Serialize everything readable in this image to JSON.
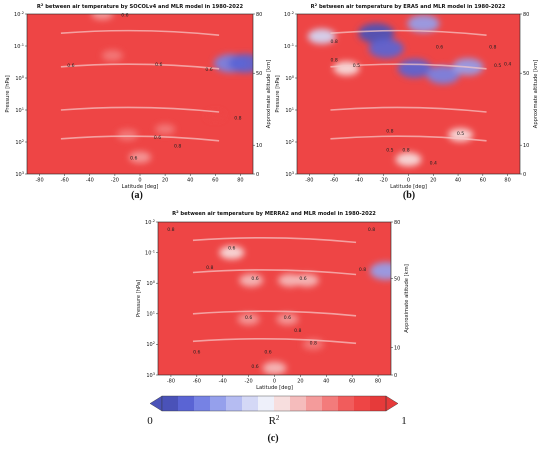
{
  "chart_data": [
    {
      "type": "heatmap",
      "panel_label": "(a)",
      "title_prefix": "R",
      "title_sup": "2",
      "title_rest": " between air temperature by SOCOLv4 and MLR model in 1980-2022",
      "xlabel": "Latitude [deg]",
      "ylabel": "Pressure [hPa]",
      "ylabel_right": "Approximate altitude [km]",
      "xticks": [
        "-80",
        "-60",
        "-40",
        "-20",
        "0",
        "20",
        "40",
        "60",
        "80"
      ],
      "xlim": [
        -90,
        90
      ],
      "yticks_left": [
        {
          "base": "10",
          "exp": "-2"
        },
        {
          "base": "10",
          "exp": "-1"
        },
        {
          "base": "10",
          "exp": "0"
        },
        {
          "base": "10",
          "exp": "1"
        },
        {
          "base": "10",
          "exp": "2"
        },
        {
          "base": "10",
          "exp": "3"
        }
      ],
      "yticks_right": [
        "80",
        "50",
        "10",
        "0"
      ],
      "yscale": "log",
      "contour_labels": [
        {
          "text": "0.6",
          "lat": -12,
          "p": 0.012
        },
        {
          "text": "0.6",
          "lat": -55,
          "p": 0.45
        },
        {
          "text": "0.6",
          "lat": 15,
          "p": 0.42
        },
        {
          "text": "0.6",
          "lat": 55,
          "p": 0.6
        },
        {
          "text": "0.8",
          "lat": 78,
          "p": 20
        },
        {
          "text": "0.6",
          "lat": 14,
          "p": 80
        },
        {
          "text": "0.6",
          "lat": -5,
          "p": 350
        },
        {
          "text": "0.8",
          "lat": 30,
          "p": 150
        }
      ],
      "features": [
        {
          "lat": 72,
          "p": 0.35,
          "value": 0.15
        },
        {
          "lat": 84,
          "p": 0.35,
          "value": 0.1
        },
        {
          "lat": -30,
          "p": 0.01,
          "value": 0.7
        },
        {
          "lat": -22,
          "p": 0.2,
          "value": 0.75
        },
        {
          "lat": 0,
          "p": 300,
          "value": 0.7
        },
        {
          "lat": -10,
          "p": 60,
          "value": 0.75
        },
        {
          "lat": 20,
          "p": 40,
          "value": 0.8
        },
        {
          "lat": 60,
          "p": 15,
          "value": 0.9
        }
      ]
    },
    {
      "type": "heatmap",
      "panel_label": "(b)",
      "title_prefix": "R",
      "title_sup": "2",
      "title_rest": " between air temperature by ERA5 and MLR model in 1980-2022",
      "xlabel": "Latitude [deg]",
      "ylabel": "Pressure [hPa]",
      "ylabel_right": "Approximate altitude [km]",
      "xticks": [
        "-80",
        "-60",
        "-40",
        "-20",
        "0",
        "20",
        "40",
        "60",
        "80"
      ],
      "xlim": [
        -90,
        90
      ],
      "yticks_left": [
        {
          "base": "10",
          "exp": "-2"
        },
        {
          "base": "10",
          "exp": "-1"
        },
        {
          "base": "10",
          "exp": "0"
        },
        {
          "base": "10",
          "exp": "1"
        },
        {
          "base": "10",
          "exp": "2"
        },
        {
          "base": "10",
          "exp": "3"
        }
      ],
      "yticks_right": [
        "80",
        "50",
        "10",
        "0"
      ],
      "yscale": "log",
      "contour_labels": [
        {
          "text": "0.8",
          "lat": -60,
          "p": 0.08
        },
        {
          "text": "0.8",
          "lat": -60,
          "p": 0.3
        },
        {
          "text": "0.5",
          "lat": -42,
          "p": 0.45
        },
        {
          "text": "0.6",
          "lat": 25,
          "p": 0.12
        },
        {
          "text": "0.8",
          "lat": 68,
          "p": 0.12
        },
        {
          "text": "0.5",
          "lat": 72,
          "p": 0.45
        },
        {
          "text": "0.4",
          "lat": 80,
          "p": 0.4
        },
        {
          "text": "0.8",
          "lat": -15,
          "p": 50
        },
        {
          "text": "0.5",
          "lat": 42,
          "p": 60
        },
        {
          "text": "0.8",
          "lat": -2,
          "p": 200
        },
        {
          "text": "0.5",
          "lat": -15,
          "p": 200
        },
        {
          "text": "0.4",
          "lat": 20,
          "p": 500
        }
      ],
      "features": [
        {
          "lat": -26,
          "p": 0.04,
          "value": 0.0
        },
        {
          "lat": -18,
          "p": 0.12,
          "value": 0.05
        },
        {
          "lat": 5,
          "p": 0.5,
          "value": 0.1
        },
        {
          "lat": 28,
          "p": 0.8,
          "value": 0.15
        },
        {
          "lat": -50,
          "p": 0.5,
          "value": 0.5
        },
        {
          "lat": 12,
          "p": 0.02,
          "value": 0.2
        },
        {
          "lat": 48,
          "p": 0.45,
          "value": 0.25
        },
        {
          "lat": 0,
          "p": 350,
          "value": 0.5
        },
        {
          "lat": 42,
          "p": 60,
          "value": 0.55
        },
        {
          "lat": -70,
          "p": 0.05,
          "value": 0.4
        }
      ]
    },
    {
      "type": "heatmap",
      "panel_label": "(c)",
      "title_prefix": "R",
      "title_sup": "2",
      "title_rest": " between air temperature by MERRA2 and MLR model in 1980-2022",
      "xlabel": "Latitude [deg]",
      "ylabel": "Pressure [hPa]",
      "ylabel_right": "Approximate altitude [km]",
      "xticks": [
        "-80",
        "-60",
        "-40",
        "-20",
        "0",
        "20",
        "40",
        "60",
        "80"
      ],
      "xlim": [
        -90,
        90
      ],
      "yticks_left": [
        {
          "base": "10",
          "exp": "-2"
        },
        {
          "base": "10",
          "exp": "-1"
        },
        {
          "base": "10",
          "exp": "0"
        },
        {
          "base": "10",
          "exp": "1"
        },
        {
          "base": "10",
          "exp": "2"
        },
        {
          "base": "10",
          "exp": "3"
        }
      ],
      "yticks_right": [
        "80",
        "50",
        "10",
        "0"
      ],
      "yscale": "log",
      "contour_labels": [
        {
          "text": "0.8",
          "lat": -80,
          "p": 0.02
        },
        {
          "text": "0.8",
          "lat": -50,
          "p": 0.35
        },
        {
          "text": "0.6",
          "lat": -33,
          "p": 0.08
        },
        {
          "text": "0.6",
          "lat": -15,
          "p": 0.8
        },
        {
          "text": "0.6",
          "lat": 22,
          "p": 0.8
        },
        {
          "text": "0.8",
          "lat": 75,
          "p": 0.02
        },
        {
          "text": "0.8",
          "lat": 68,
          "p": 0.4
        },
        {
          "text": "0.6",
          "lat": -20,
          "p": 15
        },
        {
          "text": "0.6",
          "lat": 10,
          "p": 15
        },
        {
          "text": "0.8",
          "lat": 18,
          "p": 40
        },
        {
          "text": "0.8",
          "lat": 30,
          "p": 100
        },
        {
          "text": "0.6",
          "lat": -60,
          "p": 200
        },
        {
          "text": "0.6",
          "lat": -5,
          "p": 200
        },
        {
          "text": "0.6",
          "lat": -15,
          "p": 600
        }
      ],
      "features": [
        {
          "lat": -33,
          "p": 0.1,
          "value": 0.55
        },
        {
          "lat": -18,
          "p": 0.8,
          "value": 0.6
        },
        {
          "lat": 12,
          "p": 0.8,
          "value": 0.6
        },
        {
          "lat": 25,
          "p": 0.8,
          "value": 0.6
        },
        {
          "lat": 86,
          "p": 0.4,
          "value": 0.2
        },
        {
          "lat": 0,
          "p": 600,
          "value": 0.6
        },
        {
          "lat": -20,
          "p": 15,
          "value": 0.7
        },
        {
          "lat": 10,
          "p": 15,
          "value": 0.7
        },
        {
          "lat": 30,
          "p": 100,
          "value": 0.75
        }
      ]
    }
  ],
  "colorbar": {
    "label_base": "R",
    "label_sup": "2",
    "min_label": "0",
    "max_label": "1",
    "colors": [
      "#4a52b8",
      "#5a64d4",
      "#7682e4",
      "#95a0ec",
      "#b5bcf2",
      "#d4d8f6",
      "#eef0fa",
      "#f7dede",
      "#f5bcbc",
      "#f49b9b",
      "#f37b7b",
      "#f15c5c",
      "#ee4545",
      "#e63a3a"
    ]
  }
}
